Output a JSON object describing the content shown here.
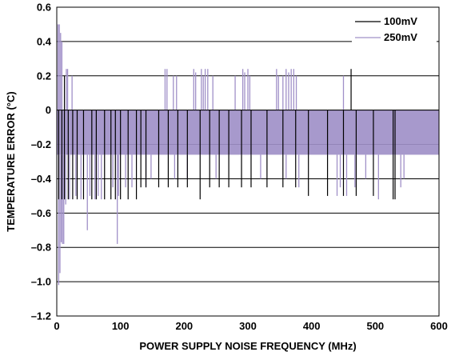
{
  "chart_data": {
    "type": "line",
    "xlabel": "POWER SUPPLY NOISE FREQUENCY (MHz)",
    "ylabel": "TEMPERATURE ERROR (°C)",
    "xlim": [
      0,
      600
    ],
    "ylim": [
      -1.2,
      0.6
    ],
    "x_ticks": [
      "0",
      "100",
      "200",
      "300",
      "400",
      "500",
      "600"
    ],
    "y_ticks": [
      "0.6",
      "0.4",
      "0.2",
      "0",
      "–0.2",
      "–0.4",
      "–0.6",
      "–0.8",
      "–1.0",
      "–1.2"
    ],
    "grid": "horizontal",
    "legend_position": "top-right",
    "series": [
      {
        "name": "100mV",
        "color": "#000000",
        "band_top": 0,
        "band_bottom": -0.26,
        "spikes_down": [
          [
            3,
            -0.52
          ],
          [
            8,
            -0.52
          ],
          [
            12,
            -0.52
          ],
          [
            18,
            -0.52
          ],
          [
            25,
            -0.52
          ],
          [
            32,
            -0.52
          ],
          [
            42,
            -0.52
          ],
          [
            55,
            -0.52
          ],
          [
            62,
            -0.52
          ],
          [
            75,
            -0.52
          ],
          [
            85,
            -0.52
          ],
          [
            92,
            -0.52
          ],
          [
            100,
            -0.52
          ],
          [
            112,
            -0.52
          ],
          [
            125,
            -0.52
          ],
          [
            132,
            -0.45
          ],
          [
            140,
            -0.45
          ],
          [
            160,
            -0.45
          ],
          [
            175,
            -0.45
          ],
          [
            190,
            -0.45
          ],
          [
            205,
            -0.45
          ],
          [
            225,
            -0.52
          ],
          [
            240,
            -0.45
          ],
          [
            255,
            -0.45
          ],
          [
            270,
            -0.45
          ],
          [
            290,
            -0.45
          ],
          [
            305,
            -0.45
          ],
          [
            330,
            -0.45
          ],
          [
            355,
            -0.45
          ],
          [
            375,
            -0.45
          ],
          [
            395,
            -0.5
          ],
          [
            425,
            -0.5
          ],
          [
            450,
            -0.5
          ],
          [
            470,
            -0.5
          ],
          [
            497,
            -0.5
          ],
          [
            528,
            -0.52
          ],
          [
            531,
            -0.52
          ]
        ],
        "spikes_up": [
          [
            12,
            0.2
          ],
          [
            462,
            0.24
          ]
        ]
      },
      {
        "name": "250mV",
        "color": "#a090c8",
        "band_top": 0,
        "band_bottom": -0.26,
        "spikes_up": [
          [
            2,
            0.5
          ],
          [
            4,
            0.5
          ],
          [
            6,
            0.45
          ],
          [
            8,
            0.4
          ],
          [
            15,
            0.24
          ],
          [
            17,
            0.24
          ],
          [
            24,
            0.2
          ],
          [
            170,
            0.24
          ],
          [
            173,
            0.24
          ],
          [
            183,
            0.2
          ],
          [
            188,
            0.2
          ],
          [
            215,
            0.24
          ],
          [
            218,
            0.22
          ],
          [
            227,
            0.24
          ],
          [
            230,
            0.2
          ],
          [
            233,
            0.24
          ],
          [
            237,
            0.24
          ],
          [
            245,
            0.2
          ],
          [
            280,
            0.2
          ],
          [
            292,
            0.24
          ],
          [
            295,
            0.22
          ],
          [
            300,
            0.24
          ],
          [
            303,
            0.2
          ],
          [
            345,
            0.24
          ],
          [
            348,
            0.2
          ],
          [
            355,
            0.2
          ],
          [
            360,
            0.24
          ],
          [
            364,
            0.22
          ],
          [
            368,
            0.24
          ],
          [
            372,
            0.24
          ],
          [
            376,
            0.2
          ],
          [
            450,
            0.2
          ]
        ],
        "spikes_down": [
          [
            3,
            -1.02
          ],
          [
            5,
            -0.95
          ],
          [
            7,
            -0.77
          ],
          [
            9,
            -0.78
          ],
          [
            11,
            -0.78
          ],
          [
            14,
            -0.55
          ],
          [
            20,
            -0.52
          ],
          [
            30,
            -0.5
          ],
          [
            38,
            -0.52
          ],
          [
            48,
            -0.7
          ],
          [
            52,
            -0.5
          ],
          [
            60,
            -0.52
          ],
          [
            65,
            -0.5
          ],
          [
            70,
            -0.52
          ],
          [
            88,
            -0.45
          ],
          [
            95,
            -0.78
          ],
          [
            97,
            -0.5
          ],
          [
            108,
            -0.45
          ],
          [
            118,
            -0.45
          ],
          [
            140,
            -0.45
          ],
          [
            148,
            -0.4
          ],
          [
            185,
            -0.4
          ],
          [
            205,
            -0.4
          ],
          [
            250,
            -0.4
          ],
          [
            320,
            -0.4
          ],
          [
            360,
            -0.4
          ],
          [
            380,
            -0.45
          ],
          [
            440,
            -0.5
          ],
          [
            445,
            -0.45
          ],
          [
            455,
            -0.5
          ],
          [
            468,
            -0.45
          ],
          [
            485,
            -0.4
          ],
          [
            505,
            -0.52
          ],
          [
            540,
            -0.45
          ],
          [
            545,
            -0.4
          ]
        ]
      }
    ]
  }
}
